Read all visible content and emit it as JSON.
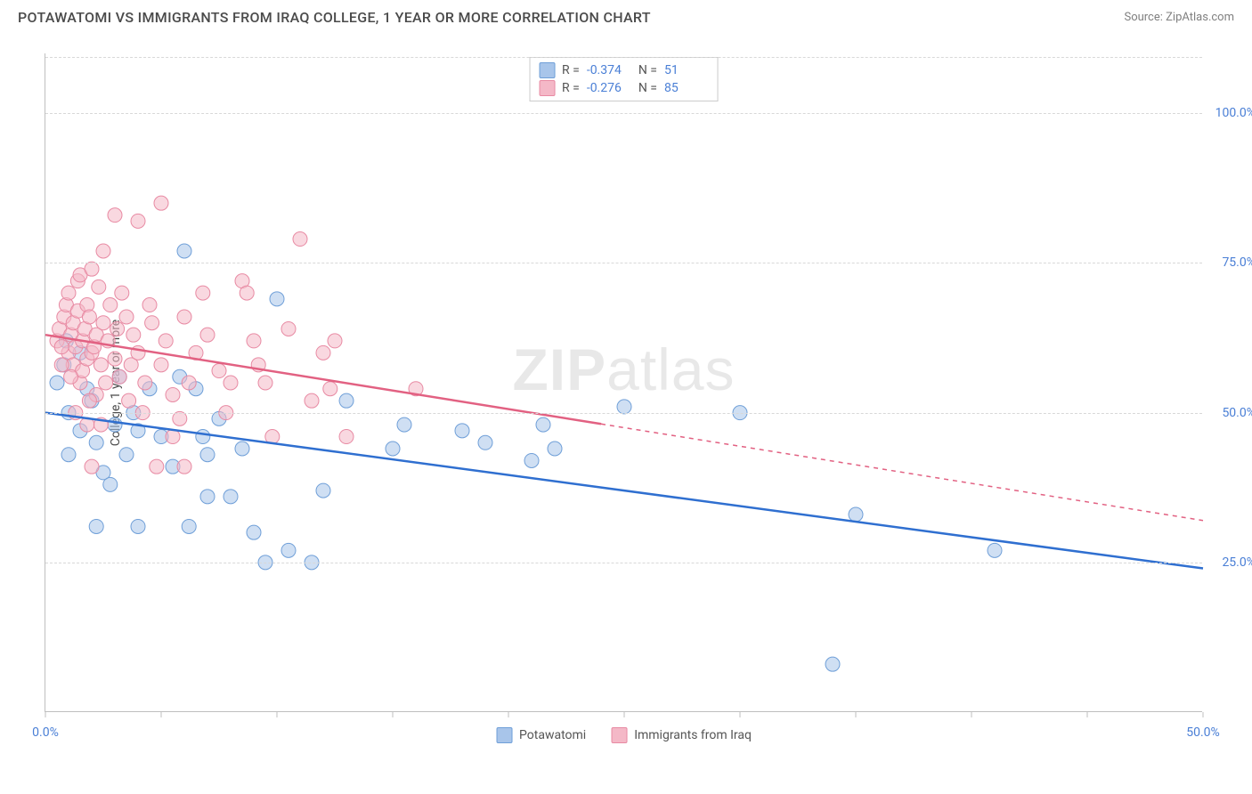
{
  "title": "POTAWATOMI VS IMMIGRANTS FROM IRAQ COLLEGE, 1 YEAR OR MORE CORRELATION CHART",
  "source": "Source: ZipAtlas.com",
  "ylabel": "College, 1 year or more",
  "watermark_part1": "ZIP",
  "watermark_part2": "atlas",
  "chart": {
    "type": "scatter-with-regression",
    "xlim": [
      0,
      50
    ],
    "ylim": [
      0,
      110
    ],
    "x_ticks": [
      0,
      5,
      10,
      15,
      20,
      25,
      30,
      35,
      40,
      45,
      50
    ],
    "x_tick_labels": {
      "0": "0.0%",
      "50": "50.0%"
    },
    "y_ticks": [
      25,
      50,
      75,
      100
    ],
    "y_tick_labels": [
      "25.0%",
      "50.0%",
      "75.0%",
      "100.0%"
    ],
    "background_color": "#ffffff",
    "grid_color": "#d8d8d8",
    "axis_color": "#bfbfbf",
    "label_color": "#4a7fd6",
    "marker_radius": 8,
    "marker_opacity": 0.55,
    "series": [
      {
        "name": "Potawatomi",
        "color_fill": "#a8c5ea",
        "color_stroke": "#6f9fd8",
        "line_color": "#2f6fd0",
        "R": "-0.374",
        "N": "51",
        "regression": {
          "x1": 0,
          "y1": 50,
          "x2": 50,
          "y2": 24,
          "solid_to_x": 50
        },
        "points": [
          [
            0.8,
            58
          ],
          [
            0.9,
            62
          ],
          [
            1.0,
            50
          ],
          [
            2.0,
            52
          ],
          [
            1.5,
            47
          ],
          [
            2.2,
            45
          ],
          [
            1.0,
            43
          ],
          [
            3.0,
            48
          ],
          [
            4.0,
            47
          ],
          [
            2.5,
            40
          ],
          [
            3.5,
            43
          ],
          [
            2.8,
            38
          ],
          [
            5.0,
            46
          ],
          [
            5.5,
            41
          ],
          [
            6.0,
            77
          ],
          [
            6.5,
            54
          ],
          [
            7.0,
            43
          ],
          [
            7.5,
            49
          ],
          [
            2.2,
            31
          ],
          [
            4.0,
            31
          ],
          [
            6.2,
            31
          ],
          [
            7.0,
            36
          ],
          [
            8.0,
            36
          ],
          [
            10.0,
            69
          ],
          [
            9.0,
            30
          ],
          [
            9.5,
            25
          ],
          [
            10.5,
            27
          ],
          [
            11.5,
            25
          ],
          [
            12.0,
            37
          ],
          [
            13.0,
            52
          ],
          [
            15.0,
            44
          ],
          [
            15.5,
            48
          ],
          [
            18.0,
            47
          ],
          [
            19.0,
            45
          ],
          [
            21.0,
            42
          ],
          [
            21.5,
            48
          ],
          [
            22.0,
            44
          ],
          [
            25.0,
            51
          ],
          [
            30.0,
            50
          ],
          [
            35.0,
            33
          ],
          [
            34.0,
            8
          ],
          [
            41.0,
            27
          ],
          [
            1.5,
            60
          ],
          [
            0.5,
            55
          ],
          [
            1.8,
            54
          ],
          [
            3.8,
            50
          ],
          [
            5.8,
            56
          ],
          [
            8.5,
            44
          ],
          [
            6.8,
            46
          ],
          [
            4.5,
            54
          ],
          [
            3.2,
            56
          ]
        ]
      },
      {
        "name": "Immigrants from Iraq",
        "color_fill": "#f4b8c7",
        "color_stroke": "#e88aa3",
        "line_color": "#e26182",
        "R": "-0.276",
        "N": "85",
        "regression": {
          "x1": 0,
          "y1": 63,
          "x2": 50,
          "y2": 32,
          "solid_to_x": 24
        },
        "points": [
          [
            0.5,
            62
          ],
          [
            0.6,
            64
          ],
          [
            0.8,
            66
          ],
          [
            0.9,
            68
          ],
          [
            1.0,
            60
          ],
          [
            1.0,
            70
          ],
          [
            1.1,
            63
          ],
          [
            1.2,
            65
          ],
          [
            1.2,
            58
          ],
          [
            1.3,
            61
          ],
          [
            1.4,
            67
          ],
          [
            1.4,
            72
          ],
          [
            1.5,
            73
          ],
          [
            1.5,
            55
          ],
          [
            1.6,
            62
          ],
          [
            1.6,
            57
          ],
          [
            1.7,
            64
          ],
          [
            1.8,
            59
          ],
          [
            1.8,
            68
          ],
          [
            1.9,
            66
          ],
          [
            2.0,
            74
          ],
          [
            2.0,
            60
          ],
          [
            2.1,
            61
          ],
          [
            2.2,
            53
          ],
          [
            2.2,
            63
          ],
          [
            2.3,
            71
          ],
          [
            2.4,
            58
          ],
          [
            2.5,
            65
          ],
          [
            2.5,
            77
          ],
          [
            2.6,
            55
          ],
          [
            2.7,
            62
          ],
          [
            2.8,
            68
          ],
          [
            3.0,
            83
          ],
          [
            3.0,
            59
          ],
          [
            3.1,
            64
          ],
          [
            3.2,
            56
          ],
          [
            3.3,
            70
          ],
          [
            3.5,
            66
          ],
          [
            3.6,
            52
          ],
          [
            3.7,
            58
          ],
          [
            3.8,
            63
          ],
          [
            4.0,
            82
          ],
          [
            4.0,
            60
          ],
          [
            4.2,
            50
          ],
          [
            4.3,
            55
          ],
          [
            4.5,
            68
          ],
          [
            4.6,
            65
          ],
          [
            5.0,
            85
          ],
          [
            5.0,
            58
          ],
          [
            5.2,
            62
          ],
          [
            5.5,
            53
          ],
          [
            5.8,
            49
          ],
          [
            5.5,
            46
          ],
          [
            6.0,
            66
          ],
          [
            6.5,
            60
          ],
          [
            6.2,
            55
          ],
          [
            6.8,
            70
          ],
          [
            6.0,
            41
          ],
          [
            7.0,
            63
          ],
          [
            7.5,
            57
          ],
          [
            7.8,
            50
          ],
          [
            8.0,
            55
          ],
          [
            8.5,
            72
          ],
          [
            8.7,
            70
          ],
          [
            9.0,
            62
          ],
          [
            9.2,
            58
          ],
          [
            9.5,
            55
          ],
          [
            9.8,
            46
          ],
          [
            11.0,
            79
          ],
          [
            11.5,
            52
          ],
          [
            12.0,
            60
          ],
          [
            12.3,
            54
          ],
          [
            12.5,
            62
          ],
          [
            13.0,
            46
          ],
          [
            16.0,
            54
          ],
          [
            2.0,
            41
          ],
          [
            1.8,
            48
          ],
          [
            1.3,
            50
          ],
          [
            4.8,
            41
          ],
          [
            0.7,
            58
          ],
          [
            0.7,
            61
          ],
          [
            1.1,
            56
          ],
          [
            1.9,
            52
          ],
          [
            2.4,
            48
          ],
          [
            10.5,
            64
          ]
        ]
      }
    ]
  },
  "legend_labels": {
    "R": "R =",
    "N": "N ="
  }
}
